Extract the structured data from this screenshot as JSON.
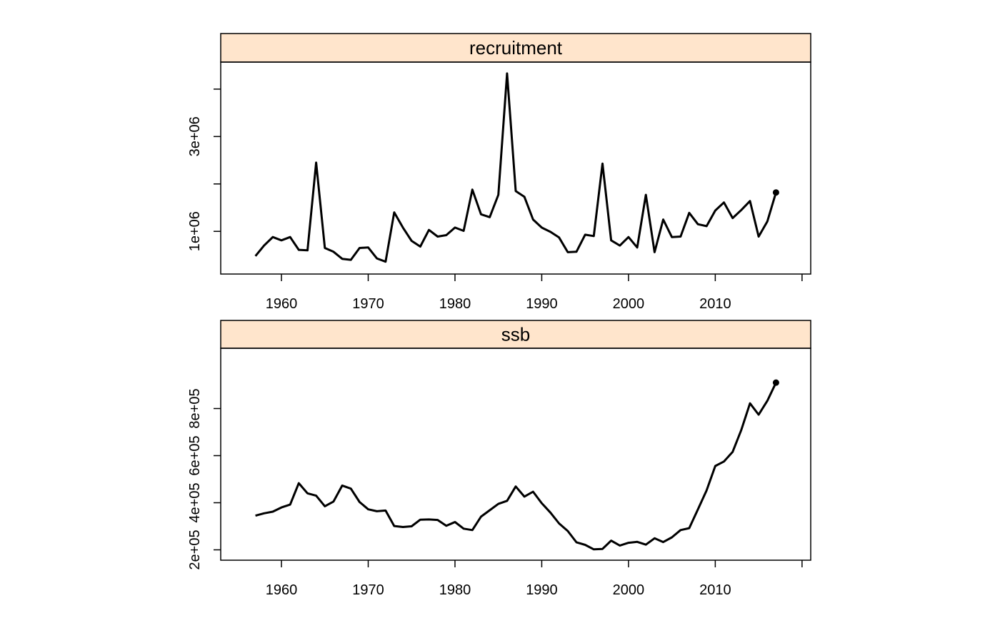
{
  "colors": {
    "strip": "#FFE5CC",
    "line": "#000000",
    "frame": "#000000"
  },
  "chart_data": [
    {
      "type": "line",
      "title": "recruitment",
      "xlabel": "",
      "ylabel": "",
      "xlim": [
        1953,
        2021
      ],
      "ylim": [
        100000,
        4570000
      ],
      "x_ticks": [
        1960,
        1970,
        1980,
        1990,
        2000,
        2010,
        2020
      ],
      "x_tick_labels": [
        "1960",
        "1970",
        "1980",
        "1990",
        "2000",
        "2010",
        ""
      ],
      "y_ticks": [
        1000000,
        2000000,
        3000000,
        4000000
      ],
      "y_tick_labels": [
        "1e+06",
        "",
        "3e+06",
        ""
      ],
      "end_marker": true,
      "x": [
        1957,
        1958,
        1959,
        1960,
        1961,
        1962,
        1963,
        1964,
        1965,
        1966,
        1967,
        1968,
        1969,
        1970,
        1971,
        1972,
        1973,
        1974,
        1975,
        1976,
        1977,
        1978,
        1979,
        1980,
        1981,
        1982,
        1983,
        1984,
        1985,
        1986,
        1987,
        1988,
        1989,
        1990,
        1991,
        1992,
        1993,
        1994,
        1995,
        1996,
        1997,
        1998,
        1999,
        2000,
        2001,
        2002,
        2003,
        2004,
        2005,
        2006,
        2007,
        2008,
        2009,
        2010,
        2011,
        2012,
        2013,
        2014,
        2015,
        2016,
        2017
      ],
      "y": [
        480000,
        700000,
        880000,
        810000,
        880000,
        610000,
        600000,
        2450000,
        650000,
        570000,
        420000,
        400000,
        650000,
        660000,
        430000,
        360000,
        1400000,
        1080000,
        800000,
        680000,
        1030000,
        890000,
        920000,
        1080000,
        1010000,
        1880000,
        1360000,
        1300000,
        1770000,
        4330000,
        1850000,
        1730000,
        1250000,
        1080000,
        990000,
        870000,
        560000,
        570000,
        930000,
        900000,
        2430000,
        810000,
        700000,
        880000,
        660000,
        1770000,
        560000,
        1250000,
        880000,
        890000,
        1390000,
        1150000,
        1110000,
        1440000,
        1610000,
        1280000,
        1450000,
        1640000,
        890000,
        1210000,
        1820000
      ]
    },
    {
      "type": "line",
      "title": "ssb",
      "xlabel": "",
      "ylabel": "",
      "xlim": [
        1953,
        2021
      ],
      "ylim": [
        156000,
        1056000
      ],
      "x_ticks": [
        1960,
        1970,
        1980,
        1990,
        2000,
        2010,
        2020
      ],
      "x_tick_labels": [
        "1960",
        "1970",
        "1980",
        "1990",
        "2000",
        "2010",
        ""
      ],
      "y_ticks": [
        200000,
        400000,
        600000,
        800000
      ],
      "y_tick_labels": [
        "2e+05",
        "4e+05",
        "6e+05",
        "8e+05"
      ],
      "end_marker": true,
      "x": [
        1957,
        1958,
        1959,
        1960,
        1961,
        1962,
        1963,
        1964,
        1965,
        1966,
        1967,
        1968,
        1969,
        1970,
        1971,
        1972,
        1973,
        1974,
        1975,
        1976,
        1977,
        1978,
        1979,
        1980,
        1981,
        1982,
        1983,
        1984,
        1985,
        1986,
        1987,
        1988,
        1989,
        1990,
        1991,
        1992,
        1993,
        1994,
        1995,
        1996,
        1997,
        1998,
        1999,
        2000,
        2001,
        2002,
        2003,
        2004,
        2005,
        2006,
        2007,
        2008,
        2009,
        2010,
        2011,
        2012,
        2013,
        2014,
        2015,
        2016,
        2017
      ],
      "y": [
        345000,
        355000,
        362000,
        380000,
        392000,
        483000,
        440000,
        430000,
        385000,
        405000,
        473000,
        460000,
        403000,
        372000,
        364000,
        367000,
        301000,
        297000,
        300000,
        328000,
        329000,
        327000,
        302000,
        318000,
        290000,
        284000,
        341000,
        368000,
        395000,
        408000,
        469000,
        426000,
        447000,
        398000,
        358000,
        312000,
        280000,
        232000,
        221000,
        202000,
        204000,
        239000,
        218000,
        230000,
        234000,
        222000,
        249000,
        233000,
        253000,
        284000,
        292000,
        372000,
        452000,
        556000,
        575000,
        616000,
        709000,
        822000,
        774000,
        833000,
        910000
      ]
    }
  ]
}
